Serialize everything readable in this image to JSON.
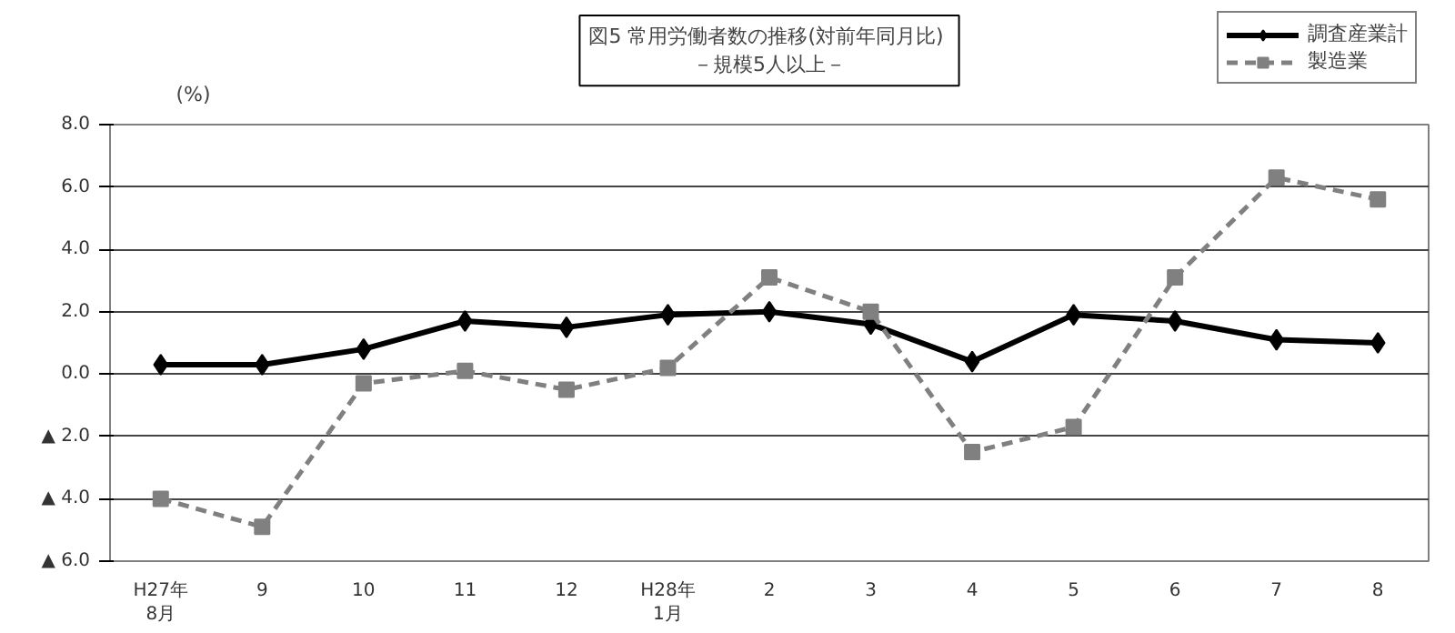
{
  "chart_data": {
    "type": "line",
    "title": "図5  常用労働者数の推移(対前年同月比)",
    "subtitle": "－規模5人以上－",
    "ylabel": "(%)",
    "categories": [
      "H27年\n8月",
      "9",
      "10",
      "11",
      "12",
      "H28年\n1月",
      "2",
      "3",
      "4",
      "5",
      "6",
      "7",
      "8"
    ],
    "series": [
      {
        "name": "調査産業計",
        "color": "#000000",
        "marker": "diamond",
        "line_style": "solid",
        "values": [
          0.3,
          0.3,
          0.8,
          1.7,
          1.5,
          1.9,
          2.0,
          1.6,
          0.4,
          1.9,
          1.7,
          1.1,
          1.0
        ]
      },
      {
        "name": "製造業",
        "color": "#808080",
        "marker": "square",
        "line_style": "dashed",
        "values": [
          -4.0,
          -4.9,
          -0.3,
          0.1,
          -0.5,
          0.2,
          3.1,
          2.0,
          -2.5,
          -1.7,
          3.1,
          6.3,
          5.6
        ]
      }
    ],
    "ylim": [
      -6,
      8
    ],
    "yticks": [
      {
        "value": -6,
        "label": "▲ 6.0"
      },
      {
        "value": -4,
        "label": "▲ 4.0"
      },
      {
        "value": -2,
        "label": "▲ 2.0"
      },
      {
        "value": 0,
        "label": "0.0"
      },
      {
        "value": 2,
        "label": "2.0"
      },
      {
        "value": 4,
        "label": "4.0"
      },
      {
        "value": 6,
        "label": "6.0"
      },
      {
        "value": 8,
        "label": "8.0"
      }
    ],
    "grid": "y",
    "legend": "top right"
  }
}
